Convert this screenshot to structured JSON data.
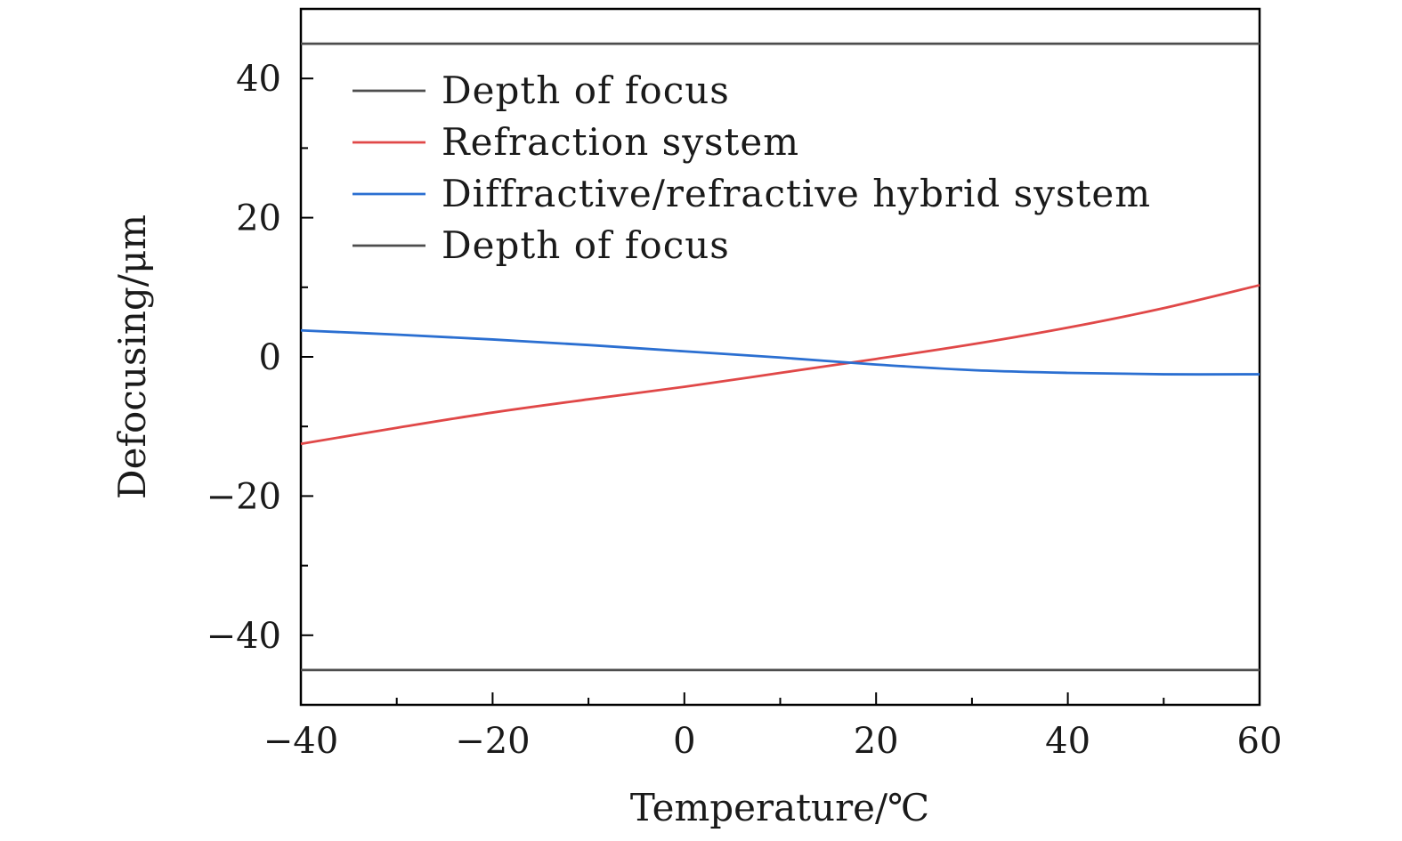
{
  "chart_data": {
    "type": "line",
    "title": "",
    "xlabel": "Temperature/℃",
    "ylabel": "Defocusing/μm",
    "xlim": [
      -40,
      60
    ],
    "ylim": [
      -50,
      50
    ],
    "xticks": [
      -40,
      -20,
      0,
      20,
      40,
      60
    ],
    "xtick_labels": [
      "−40",
      "−20",
      "0",
      "20",
      "40",
      "60"
    ],
    "yticks": [
      -40,
      -20,
      0,
      20,
      40
    ],
    "ytick_labels": [
      "−40",
      "−20",
      "0",
      "20",
      "40"
    ],
    "x_minor_step": 10,
    "y_minor_step": 10,
    "grid": false,
    "legend_position": "top-left",
    "series": [
      {
        "name": "Depth of focus",
        "color": "#4d4d4d",
        "x": [
          -40,
          60
        ],
        "y": [
          45,
          45
        ]
      },
      {
        "name": "Refraction system",
        "color": "#e04848",
        "x": [
          -40,
          -30,
          -20,
          -10,
          0,
          10,
          20,
          30,
          40,
          50,
          60
        ],
        "y": [
          -12.5,
          -10.2,
          -8.0,
          -6.1,
          -4.3,
          -2.3,
          -0.3,
          1.8,
          4.2,
          7.0,
          10.3
        ]
      },
      {
        "name": "Diffractive/refractive hybrid system",
        "color": "#2b6fd1",
        "x": [
          -40,
          -30,
          -20,
          -10,
          0,
          10,
          20,
          30,
          40,
          50,
          60
        ],
        "y": [
          3.8,
          3.2,
          2.5,
          1.7,
          0.8,
          -0.1,
          -1.1,
          -1.9,
          -2.3,
          -2.5,
          -2.5
        ]
      },
      {
        "name": "Depth of focus",
        "color": "#4d4d4d",
        "x": [
          -40,
          60
        ],
        "y": [
          -45,
          -45
        ]
      }
    ]
  }
}
